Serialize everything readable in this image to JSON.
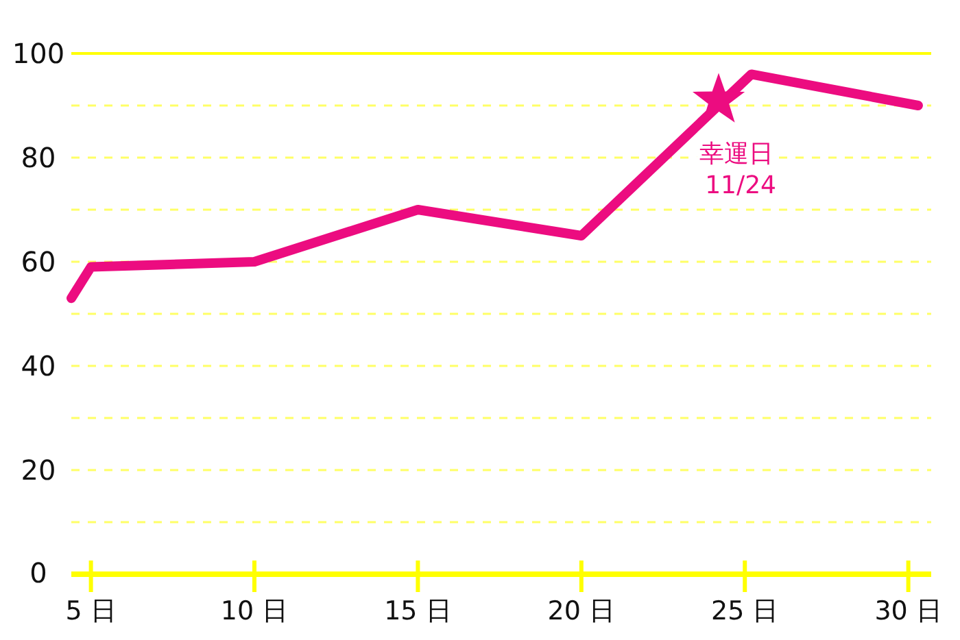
{
  "chart_data": {
    "type": "line",
    "x": [
      4.4,
      5,
      10,
      15,
      20,
      25.2,
      30.3
    ],
    "series": [
      {
        "color": "#ec0c80",
        "values": [
          53,
          59,
          60,
          70,
          65,
          96,
          90
        ]
      }
    ],
    "xlim": [
      4.4,
      30.7
    ],
    "ylim": [
      0,
      100
    ],
    "xticks": [
      {
        "value": 5,
        "label": "5 日"
      },
      {
        "value": 10,
        "label": "10 日"
      },
      {
        "value": 15,
        "label": "15 日"
      },
      {
        "value": 20,
        "label": "20 日"
      },
      {
        "value": 25,
        "label": "25 日"
      },
      {
        "value": 30,
        "label": "30 日"
      }
    ],
    "yticks": [
      0,
      {
        "value": 10,
        "label": null
      },
      20,
      {
        "value": 30,
        "label": null
      },
      40,
      {
        "value": 50,
        "label": null
      },
      60,
      {
        "value": 70,
        "label": null
      },
      80,
      {
        "value": 90,
        "label": null
      },
      100
    ],
    "grid": "y",
    "marker": "none",
    "line_style": "solid",
    "annotations": [
      {
        "text": "幸運日 11/24",
        "x": 24.2,
        "y": 91
      }
    ]
  }
}
